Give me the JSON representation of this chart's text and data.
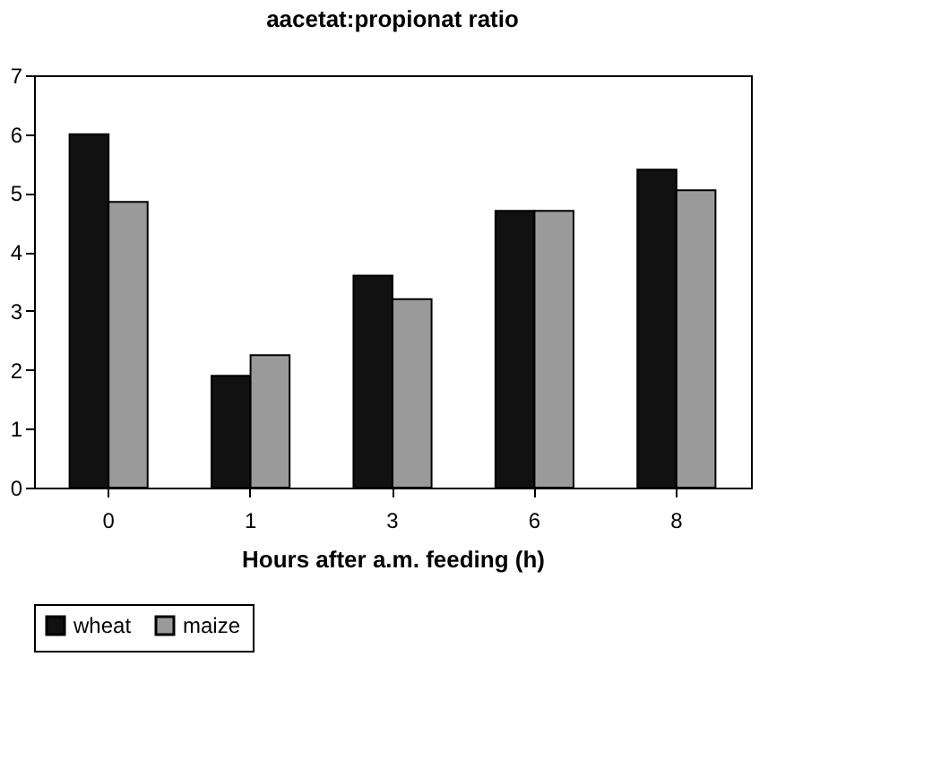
{
  "chart_data": {
    "type": "bar",
    "title": "aacetat:propionat ratio",
    "xlabel": "Hours after a.m. feeding (h)",
    "categories": [
      "0",
      "1",
      "3",
      "6",
      "8"
    ],
    "series": [
      {
        "name": "wheat",
        "color": "#111111",
        "values": [
          6.0,
          1.9,
          3.6,
          4.7,
          5.4
        ]
      },
      {
        "name": "maize",
        "color": "#9a9a9a",
        "values": [
          4.85,
          2.25,
          3.2,
          4.7,
          5.05
        ]
      }
    ],
    "ylim": [
      0,
      7
    ],
    "yticks": [
      0,
      1,
      2,
      3,
      4,
      5,
      6,
      7
    ],
    "grid": false,
    "legend": "bottom"
  }
}
